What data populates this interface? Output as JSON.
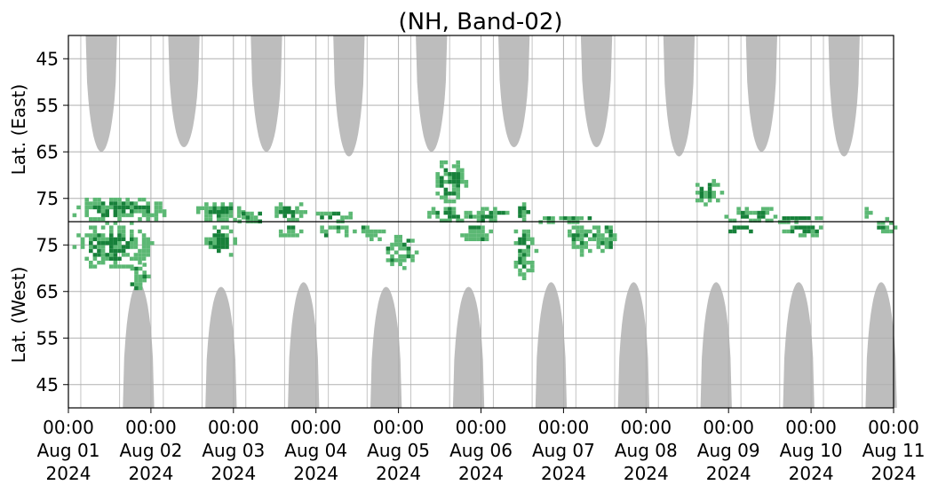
{
  "chart_data": {
    "type": "heatmap",
    "title": "(NH, Band-02)",
    "ylabel_top": "Lat. (East)",
    "ylabel_bottom": "Lat. (West)",
    "ylim_top": [
      40,
      80
    ],
    "ylim_bottom": [
      40,
      80
    ],
    "yticks_top": [
      "45",
      "55",
      "65",
      "75"
    ],
    "yticks_bottom": [
      "75",
      "65",
      "55",
      "45"
    ],
    "xlim_days": [
      0,
      10
    ],
    "xticks": [
      {
        "time": "00:00",
        "date": "Aug 01",
        "year": "2024"
      },
      {
        "time": "00:00",
        "date": "Aug 02",
        "year": "2024"
      },
      {
        "time": "00:00",
        "date": "Aug 03",
        "year": "2024"
      },
      {
        "time": "00:00",
        "date": "Aug 04",
        "year": "2024"
      },
      {
        "time": "00:00",
        "date": "Aug 05",
        "year": "2024"
      },
      {
        "time": "00:00",
        "date": "Aug 06",
        "year": "2024"
      },
      {
        "time": "00:00",
        "date": "Aug 07",
        "year": "2024"
      },
      {
        "time": "00:00",
        "date": "Aug 08",
        "year": "2024"
      },
      {
        "time": "00:00",
        "date": "Aug 09",
        "year": "2024"
      },
      {
        "time": "00:00",
        "date": "Aug 10",
        "year": "2024"
      },
      {
        "time": "00:00",
        "date": "Aug 11",
        "year": "2024"
      }
    ],
    "grid": true,
    "colors": {
      "night": "#bdbdbd",
      "activity_light": "#5cb874",
      "activity_dark": "#17813a",
      "grid": "#b0b0b0"
    },
    "night_regions_top": [
      {
        "center_day": 0.4,
        "half_width_days": 0.19,
        "min_lat": 65
      },
      {
        "center_day": 1.4,
        "half_width_days": 0.19,
        "min_lat": 64
      },
      {
        "center_day": 2.4,
        "half_width_days": 0.19,
        "min_lat": 65
      },
      {
        "center_day": 3.4,
        "half_width_days": 0.19,
        "min_lat": 66
      },
      {
        "center_day": 4.4,
        "half_width_days": 0.19,
        "min_lat": 65
      },
      {
        "center_day": 5.4,
        "half_width_days": 0.19,
        "min_lat": 64
      },
      {
        "center_day": 6.4,
        "half_width_days": 0.19,
        "min_lat": 64
      },
      {
        "center_day": 7.4,
        "half_width_days": 0.19,
        "min_lat": 66
      },
      {
        "center_day": 8.4,
        "half_width_days": 0.19,
        "min_lat": 65
      },
      {
        "center_day": 9.4,
        "half_width_days": 0.19,
        "min_lat": 66
      }
    ],
    "night_regions_bottom": [
      {
        "center_day": 0.85,
        "half_width_days": 0.19,
        "min_lat": 67
      },
      {
        "center_day": 1.85,
        "half_width_days": 0.19,
        "min_lat": 66
      },
      {
        "center_day": 2.85,
        "half_width_days": 0.19,
        "min_lat": 67
      },
      {
        "center_day": 3.85,
        "half_width_days": 0.19,
        "min_lat": 66
      },
      {
        "center_day": 4.85,
        "half_width_days": 0.19,
        "min_lat": 66
      },
      {
        "center_day": 5.85,
        "half_width_days": 0.19,
        "min_lat": 67
      },
      {
        "center_day": 6.85,
        "half_width_days": 0.19,
        "min_lat": 67
      },
      {
        "center_day": 7.85,
        "half_width_days": 0.19,
        "min_lat": 67
      },
      {
        "center_day": 8.85,
        "half_width_days": 0.19,
        "min_lat": 67
      },
      {
        "center_day": 9.85,
        "half_width_days": 0.19,
        "min_lat": 67
      }
    ],
    "activity_blobs": [
      {
        "hemisphere": "east",
        "day_start": 0.0,
        "day_end": 1.2,
        "lat_min": 74,
        "lat_max": 80,
        "shade": "mixed"
      },
      {
        "hemisphere": "west",
        "day_start": 0.0,
        "day_end": 1.0,
        "lat_min": 70,
        "lat_max": 80,
        "shade": "mixed"
      },
      {
        "hemisphere": "west",
        "day_start": 0.7,
        "day_end": 0.95,
        "lat_min": 65,
        "lat_max": 72,
        "shade": "light"
      },
      {
        "hemisphere": "east",
        "day_start": 1.5,
        "day_end": 2.1,
        "lat_min": 75,
        "lat_max": 80,
        "shade": "mixed"
      },
      {
        "hemisphere": "west",
        "day_start": 1.6,
        "day_end": 2.0,
        "lat_min": 72,
        "lat_max": 80,
        "shade": "mixed"
      },
      {
        "hemisphere": "east",
        "day_start": 2.0,
        "day_end": 2.35,
        "lat_min": 77,
        "lat_max": 80,
        "shade": "light"
      },
      {
        "hemisphere": "east",
        "day_start": 2.45,
        "day_end": 2.85,
        "lat_min": 75,
        "lat_max": 80,
        "shade": "mixed"
      },
      {
        "hemisphere": "west",
        "day_start": 2.5,
        "day_end": 2.8,
        "lat_min": 77,
        "lat_max": 80,
        "shade": "light"
      },
      {
        "hemisphere": "east",
        "day_start": 2.9,
        "day_end": 3.45,
        "lat_min": 77,
        "lat_max": 80,
        "shade": "mixed"
      },
      {
        "hemisphere": "west",
        "day_start": 3.0,
        "day_end": 3.5,
        "lat_min": 77,
        "lat_max": 80,
        "shade": "light"
      },
      {
        "hemisphere": "west",
        "day_start": 3.5,
        "day_end": 3.8,
        "lat_min": 76,
        "lat_max": 80,
        "shade": "light"
      },
      {
        "hemisphere": "west",
        "day_start": 3.8,
        "day_end": 4.2,
        "lat_min": 70,
        "lat_max": 78,
        "shade": "light"
      },
      {
        "hemisphere": "east",
        "day_start": 4.3,
        "day_end": 4.9,
        "lat_min": 76,
        "lat_max": 80,
        "shade": "mixed"
      },
      {
        "hemisphere": "east",
        "day_start": 4.4,
        "day_end": 4.8,
        "lat_min": 66,
        "lat_max": 76,
        "shade": "mixed"
      },
      {
        "hemisphere": "east",
        "day_start": 4.8,
        "day_end": 5.3,
        "lat_min": 76,
        "lat_max": 80,
        "shade": "light"
      },
      {
        "hemisphere": "west",
        "day_start": 4.7,
        "day_end": 5.1,
        "lat_min": 76,
        "lat_max": 80,
        "shade": "light"
      },
      {
        "hemisphere": "east",
        "day_start": 5.35,
        "day_end": 5.6,
        "lat_min": 75,
        "lat_max": 80,
        "shade": "mixed"
      },
      {
        "hemisphere": "west",
        "day_start": 5.35,
        "day_end": 5.65,
        "lat_min": 68,
        "lat_max": 80,
        "shade": "mixed"
      },
      {
        "hemisphere": "east",
        "day_start": 5.6,
        "day_end": 6.3,
        "lat_min": 78,
        "lat_max": 80,
        "shade": "light"
      },
      {
        "hemisphere": "west",
        "day_start": 6.0,
        "day_end": 6.35,
        "lat_min": 73,
        "lat_max": 80,
        "shade": "mixed"
      },
      {
        "hemisphere": "west",
        "day_start": 6.3,
        "day_end": 6.6,
        "lat_min": 74,
        "lat_max": 80,
        "shade": "light"
      },
      {
        "hemisphere": "east",
        "day_start": 7.55,
        "day_end": 7.9,
        "lat_min": 70,
        "lat_max": 76,
        "shade": "mixed"
      },
      {
        "hemisphere": "east",
        "day_start": 7.9,
        "day_end": 8.6,
        "lat_min": 76,
        "lat_max": 80,
        "shade": "mixed"
      },
      {
        "hemisphere": "west",
        "day_start": 7.9,
        "day_end": 8.4,
        "lat_min": 78,
        "lat_max": 80,
        "shade": "dark"
      },
      {
        "hemisphere": "east",
        "day_start": 8.5,
        "day_end": 9.1,
        "lat_min": 78,
        "lat_max": 80,
        "shade": "mixed"
      },
      {
        "hemisphere": "west",
        "day_start": 8.6,
        "day_end": 9.2,
        "lat_min": 77,
        "lat_max": 80,
        "shade": "mixed"
      },
      {
        "hemisphere": "east",
        "day_start": 9.6,
        "day_end": 9.7,
        "lat_min": 76,
        "lat_max": 80,
        "shade": "light"
      },
      {
        "hemisphere": "east",
        "day_start": 9.7,
        "day_end": 10.0,
        "lat_min": 79,
        "lat_max": 80,
        "shade": "mixed"
      },
      {
        "hemisphere": "west",
        "day_start": 9.7,
        "day_end": 10.0,
        "lat_min": 78,
        "lat_max": 80,
        "shade": "mixed"
      }
    ]
  }
}
